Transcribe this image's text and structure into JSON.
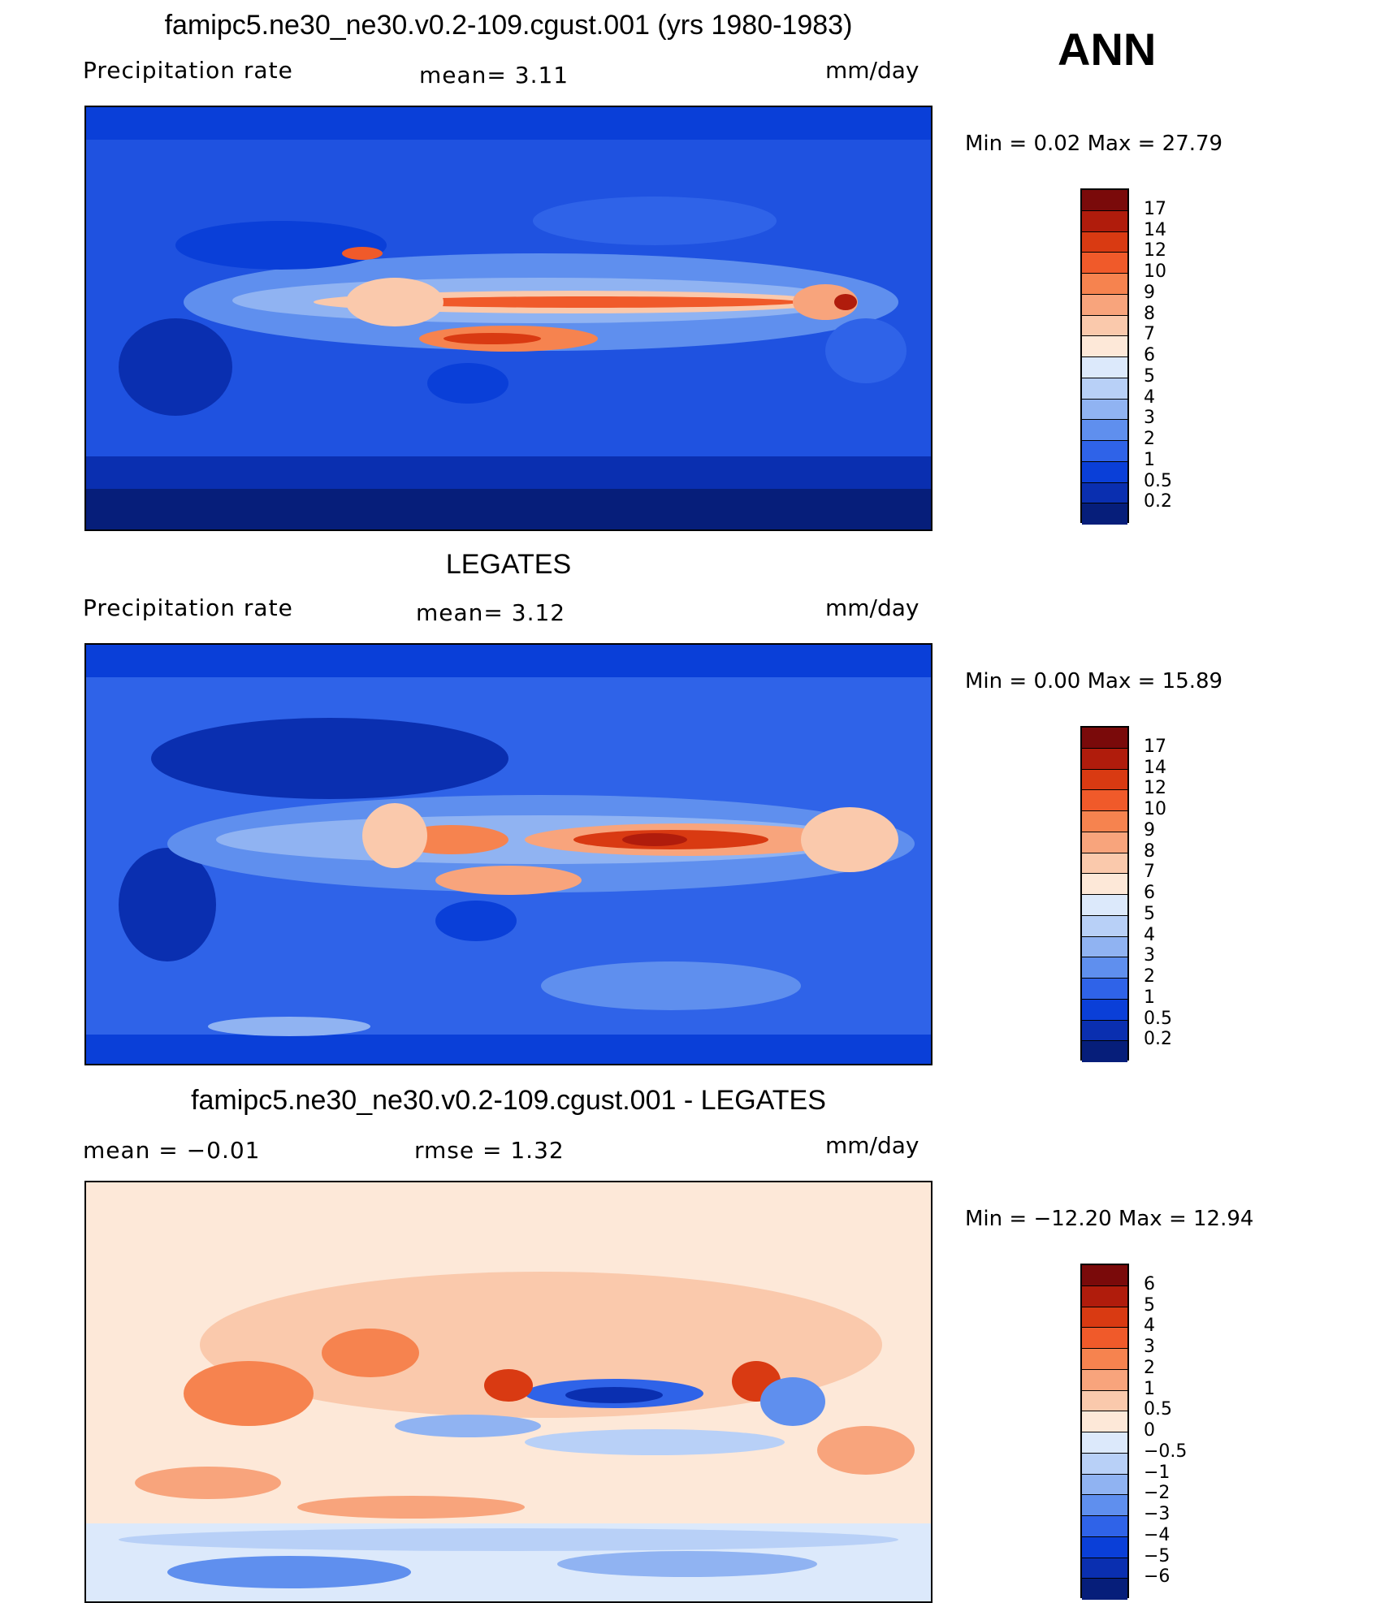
{
  "season": "ANN",
  "panels": [
    {
      "title": "famipc5.ne30_ne30.v0.2-109.cgust.001 (yrs 1980-1983)",
      "variable": "Precipitation  rate",
      "stat1": "mean=    3.11",
      "units": "mm/day",
      "minmax": "Min  =     0.02  Max  =     27.79",
      "colorbar": {
        "labels": [
          "17",
          "14",
          "12",
          "10",
          "9",
          "8",
          "7",
          "6",
          "5",
          "4",
          "3",
          "2",
          "1",
          "0.5",
          "0.2"
        ],
        "colors": [
          "#7a0a0a",
          "#b01c0c",
          "#d93a12",
          "#f05a2a",
          "#f6834f",
          "#f8a47c",
          "#fac9ac",
          "#fde8d8",
          "#dce9fb",
          "#b8d0f7",
          "#90b3f2",
          "#5f8fee",
          "#2f63e8",
          "#0a3fd8",
          "#0a2fb0",
          "#061e7a"
        ]
      },
      "map_theme": "model"
    },
    {
      "title": "LEGATES",
      "variable": "Precipitation  rate",
      "stat1": "mean=    3.12",
      "units": "mm/day",
      "minmax": "Min  =     0.00  Max  =     15.89",
      "colorbar": {
        "labels": [
          "17",
          "14",
          "12",
          "10",
          "9",
          "8",
          "7",
          "6",
          "5",
          "4",
          "3",
          "2",
          "1",
          "0.5",
          "0.2"
        ],
        "colors": [
          "#7a0a0a",
          "#b01c0c",
          "#d93a12",
          "#f05a2a",
          "#f6834f",
          "#f8a47c",
          "#fac9ac",
          "#fde8d8",
          "#dce9fb",
          "#b8d0f7",
          "#90b3f2",
          "#5f8fee",
          "#2f63e8",
          "#0a3fd8",
          "#0a2fb0",
          "#061e7a"
        ]
      },
      "map_theme": "obs"
    },
    {
      "title": "famipc5.ne30_ne30.v0.2-109.cgust.001 - LEGATES",
      "variable": "mean  =    −0.01",
      "stat1": "rmse  =     1.32",
      "units": "mm/day",
      "minmax": "Min  = −12.20  Max  =     12.94",
      "colorbar": {
        "labels": [
          "6",
          "5",
          "4",
          "3",
          "2",
          "1",
          "0.5",
          "0",
          "−0.5",
          "−1",
          "−2",
          "−3",
          "−4",
          "−5",
          "−6"
        ],
        "colors": [
          "#7a0a0a",
          "#b01c0c",
          "#d93a12",
          "#f05a2a",
          "#f6834f",
          "#f8a47c",
          "#fac9ac",
          "#fde8d8",
          "#dce9fb",
          "#b8d0f7",
          "#90b3f2",
          "#5f8fee",
          "#2f63e8",
          "#0a3fd8",
          "#0a2fb0",
          "#061e7a"
        ]
      },
      "map_theme": "diff"
    }
  ]
}
